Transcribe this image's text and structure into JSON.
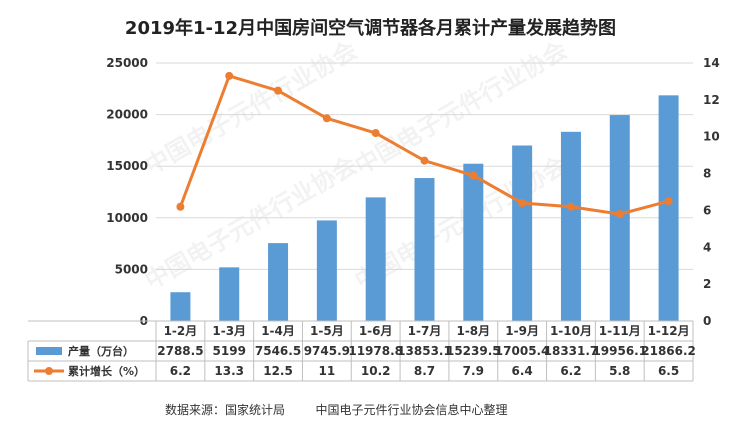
{
  "chart_data": {
    "type": "bar+line",
    "title": "2019年1-12月中国房间空气调节器各月累计产量发展趋势图",
    "categories": [
      "1-2月",
      "1-3月",
      "1-4月",
      "1-5月",
      "1-6月",
      "1-7月",
      "1-8月",
      "1-9月",
      "1-10月",
      "1-11月",
      "1-12月"
    ],
    "series": [
      {
        "name": "产量（万台）",
        "type": "bar",
        "axis": "left",
        "color": "#5b9bd5",
        "values": [
          2788.5,
          5199,
          7546.5,
          9745.9,
          11978.8,
          13853.1,
          15239.5,
          17005.4,
          18331.7,
          19956.1,
          21866.2
        ],
        "labels": [
          "2788.5",
          "5199",
          "7546.5",
          "9745.9",
          "11978.8",
          "13853.1",
          "15239.5",
          "17005.4",
          "18331.7",
          "19956.1",
          "21866.2"
        ]
      },
      {
        "name": "累计增长（%）",
        "type": "line",
        "axis": "right",
        "color": "#ed7d31",
        "values": [
          6.2,
          13.3,
          12.5,
          11,
          10.2,
          8.7,
          7.9,
          6.4,
          6.2,
          5.8,
          6.5
        ],
        "labels": [
          "6.2",
          "13.3",
          "12.5",
          "11",
          "10.2",
          "8.7",
          "7.9",
          "6.4",
          "6.2",
          "5.8",
          "6.5"
        ]
      }
    ],
    "left_axis": {
      "min": 0,
      "max": 25000,
      "ticks": [
        "0",
        "5000",
        "10000",
        "15000",
        "20000",
        "25000"
      ]
    },
    "right_axis": {
      "min": 0,
      "max": 14,
      "ticks": [
        "0",
        "2",
        "4",
        "6",
        "8",
        "10",
        "12",
        "14"
      ]
    },
    "grid": true,
    "data_table": true,
    "watermark": "中国电子元件行业协会"
  },
  "source_text": "数据来源：国家统计局        中国电子元件行业协会信息中心整理"
}
